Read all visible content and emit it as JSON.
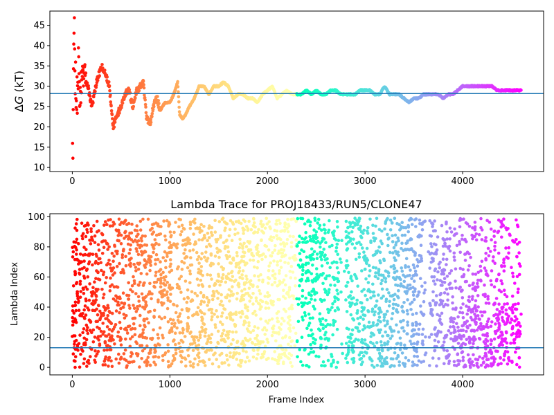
{
  "chart_data": [
    {
      "type": "scatter",
      "title": "",
      "xlabel": "",
      "ylabel": "ΔG (kT)",
      "ylabel_symbol": "Δ",
      "ylabel_var": "G",
      "ylabel_unit": " (kT)",
      "xlim": [
        -230,
        4830
      ],
      "ylim": [
        9,
        48.5
      ],
      "xticks": [
        0,
        1000,
        2000,
        3000,
        4000
      ],
      "yticks": [
        10,
        15,
        20,
        25,
        30,
        35,
        40,
        45
      ],
      "hline": 28.2,
      "hline_color": "#1f77b4",
      "colormap": "rainbow (frame 0 = red, last frame = violet)",
      "n_frames": 4600,
      "trace": {
        "x": [
          0,
          20,
          40,
          60,
          80,
          100,
          130,
          160,
          200,
          250,
          300,
          340,
          380,
          420,
          460,
          500,
          540,
          580,
          620,
          660,
          700,
          730,
          760,
          800,
          840,
          870,
          900,
          950,
          1000,
          1040,
          1080,
          1100,
          1130,
          1160,
          1200,
          1250,
          1300,
          1350,
          1400,
          1450,
          1500,
          1550,
          1600,
          1650,
          1700,
          1750,
          1800,
          1850,
          1900,
          1950,
          2000,
          2050,
          2100,
          2150,
          2200,
          2250,
          2300,
          2350,
          2400,
          2450,
          2500,
          2550,
          2600,
          2650,
          2700,
          2750,
          2800,
          2850,
          2900,
          2950,
          3000,
          3050,
          3100,
          3150,
          3200,
          3250,
          3300,
          3350,
          3400,
          3450,
          3500,
          3550,
          3600,
          3650,
          3700,
          3750,
          3800,
          3850,
          3900,
          3950,
          4000,
          4050,
          4100,
          4150,
          4200,
          4250,
          4300,
          4350,
          4400,
          4450,
          4500,
          4550,
          4600
        ],
        "y": [
          10,
          45,
          22,
          35,
          28,
          31,
          33,
          30,
          25,
          31,
          35,
          33,
          30,
          20,
          23,
          25,
          28,
          29,
          25,
          29,
          30,
          31,
          22,
          21,
          26,
          27,
          24,
          26,
          26,
          28,
          31,
          23,
          22,
          23,
          25,
          27,
          30,
          30,
          28,
          30,
          30,
          31,
          30,
          27,
          28,
          28,
          27,
          27,
          26,
          28,
          29,
          30,
          27,
          28,
          29,
          28,
          28,
          28,
          29,
          28,
          29,
          28,
          28,
          29,
          29,
          28,
          28,
          28,
          28,
          29,
          29,
          29,
          28,
          28,
          30,
          28,
          28,
          28,
          27,
          26,
          27,
          27,
          28,
          28,
          28,
          28,
          27,
          28,
          28,
          29,
          30,
          30,
          30,
          30,
          30,
          30,
          30,
          29,
          29,
          29,
          29,
          29,
          29
        ]
      }
    },
    {
      "type": "scatter",
      "title": "Lambda Trace for PROJ18433/RUN5/CLONE47",
      "xlabel": "Frame Index",
      "ylabel": "Lambda Index",
      "xlim": [
        -230,
        4830
      ],
      "ylim": [
        -5,
        102
      ],
      "xticks": [
        0,
        1000,
        2000,
        3000,
        4000
      ],
      "yticks": [
        0,
        20,
        40,
        60,
        80,
        100
      ],
      "hline": 13,
      "hline_color": "#1f77b4",
      "colormap": "rainbow (frame 0 = red, last frame = violet)",
      "n_frames": 4600,
      "n_points_drawn": 3400,
      "value_range": [
        0,
        99
      ],
      "gap_regions": [
        [
          2730,
          2800
        ],
        [
          3620,
          3660
        ]
      ],
      "low_band_after_frame": 3850
    }
  ]
}
